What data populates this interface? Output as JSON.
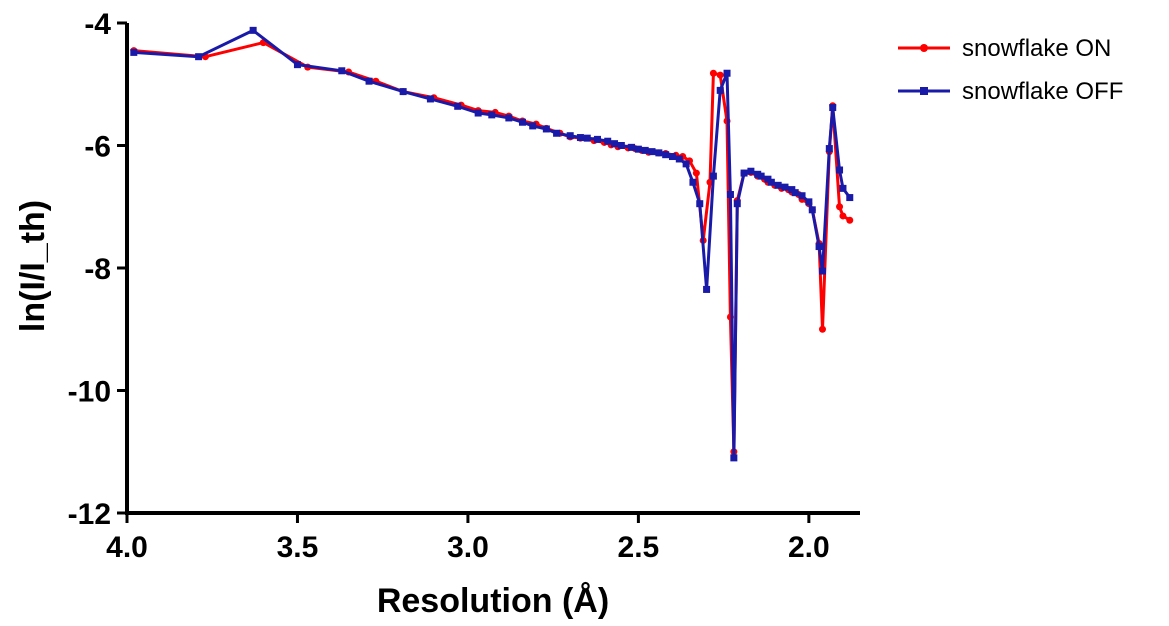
{
  "chart_data": {
    "type": "line",
    "xlabel": "Resolution (Å)",
    "ylabel": "ln(I/I_th)",
    "xlim": [
      4.0,
      1.85
    ],
    "ylim": [
      -12,
      -4
    ],
    "x_ticks": [
      4.0,
      3.5,
      3.0,
      2.5,
      2.0
    ],
    "x_tick_labels": [
      "4.0",
      "3.5",
      "3.0",
      "2.5",
      "2.0"
    ],
    "y_ticks": [
      -4,
      -6,
      -8,
      -10,
      -12
    ],
    "y_tick_labels": [
      "-4",
      "-6",
      "-8",
      "-10",
      "-12"
    ],
    "legend_position": "top-right",
    "series": [
      {
        "name": "snowflake ON",
        "color": "#ff0000",
        "marker": "circle",
        "x": [
          3.98,
          3.77,
          3.6,
          3.47,
          3.35,
          3.27,
          3.19,
          3.1,
          3.02,
          2.97,
          2.92,
          2.88,
          2.84,
          2.8,
          2.77,
          2.73,
          2.7,
          2.67,
          2.63,
          2.6,
          2.58,
          2.56,
          2.53,
          2.51,
          2.49,
          2.47,
          2.44,
          2.42,
          2.39,
          2.37,
          2.35,
          2.33,
          2.31,
          2.29,
          2.28,
          2.26,
          2.24,
          2.23,
          2.22,
          2.21,
          2.19,
          2.17,
          2.15,
          2.13,
          2.12,
          2.1,
          2.08,
          2.06,
          2.05,
          2.03,
          2.02,
          2.0,
          1.99,
          1.97,
          1.96,
          1.94,
          1.93,
          1.91,
          1.9,
          1.88
        ],
        "y": [
          -4.45,
          -4.55,
          -4.32,
          -4.72,
          -4.8,
          -4.95,
          -5.12,
          -5.22,
          -5.34,
          -5.43,
          -5.46,
          -5.52,
          -5.6,
          -5.65,
          -5.72,
          -5.8,
          -5.86,
          -5.88,
          -5.92,
          -5.95,
          -5.99,
          -6.02,
          -6.04,
          -6.05,
          -6.08,
          -6.11,
          -6.12,
          -6.13,
          -6.16,
          -6.18,
          -6.25,
          -6.45,
          -7.55,
          -6.6,
          -4.82,
          -4.85,
          -5.6,
          -8.8,
          -11.0,
          -6.9,
          -6.45,
          -6.44,
          -6.5,
          -6.55,
          -6.6,
          -6.65,
          -6.7,
          -6.72,
          -6.76,
          -6.8,
          -6.88,
          -6.95,
          -7.05,
          -7.6,
          -9.0,
          -6.1,
          -5.35,
          -7.0,
          -7.15,
          -7.22
        ]
      },
      {
        "name": "snowflake OFF",
        "color": "#1a1aa8",
        "marker": "square",
        "x": [
          3.98,
          3.79,
          3.63,
          3.5,
          3.37,
          3.29,
          3.19,
          3.11,
          3.03,
          2.97,
          2.93,
          2.88,
          2.84,
          2.81,
          2.77,
          2.74,
          2.7,
          2.67,
          2.65,
          2.62,
          2.59,
          2.57,
          2.55,
          2.52,
          2.5,
          2.48,
          2.46,
          2.44,
          2.42,
          2.4,
          2.38,
          2.36,
          2.34,
          2.32,
          2.3,
          2.28,
          2.26,
          2.24,
          2.23,
          2.22,
          2.21,
          2.19,
          2.17,
          2.15,
          2.14,
          2.12,
          2.11,
          2.09,
          2.07,
          2.05,
          2.04,
          2.02,
          2.0,
          1.99,
          1.97,
          1.96,
          1.94,
          1.93,
          1.91,
          1.9,
          1.88
        ],
        "y": [
          -4.48,
          -4.55,
          -4.12,
          -4.68,
          -4.78,
          -4.95,
          -5.12,
          -5.24,
          -5.36,
          -5.47,
          -5.5,
          -5.55,
          -5.62,
          -5.68,
          -5.73,
          -5.8,
          -5.84,
          -5.87,
          -5.88,
          -5.9,
          -5.93,
          -5.97,
          -6.0,
          -6.03,
          -6.06,
          -6.08,
          -6.1,
          -6.12,
          -6.15,
          -6.18,
          -6.22,
          -6.3,
          -6.6,
          -6.95,
          -8.35,
          -6.5,
          -5.1,
          -4.82,
          -6.8,
          -11.1,
          -6.95,
          -6.45,
          -6.42,
          -6.47,
          -6.5,
          -6.55,
          -6.6,
          -6.65,
          -6.68,
          -6.72,
          -6.77,
          -6.82,
          -6.92,
          -7.05,
          -7.65,
          -8.05,
          -6.05,
          -5.38,
          -6.4,
          -6.7,
          -6.85
        ]
      }
    ]
  }
}
